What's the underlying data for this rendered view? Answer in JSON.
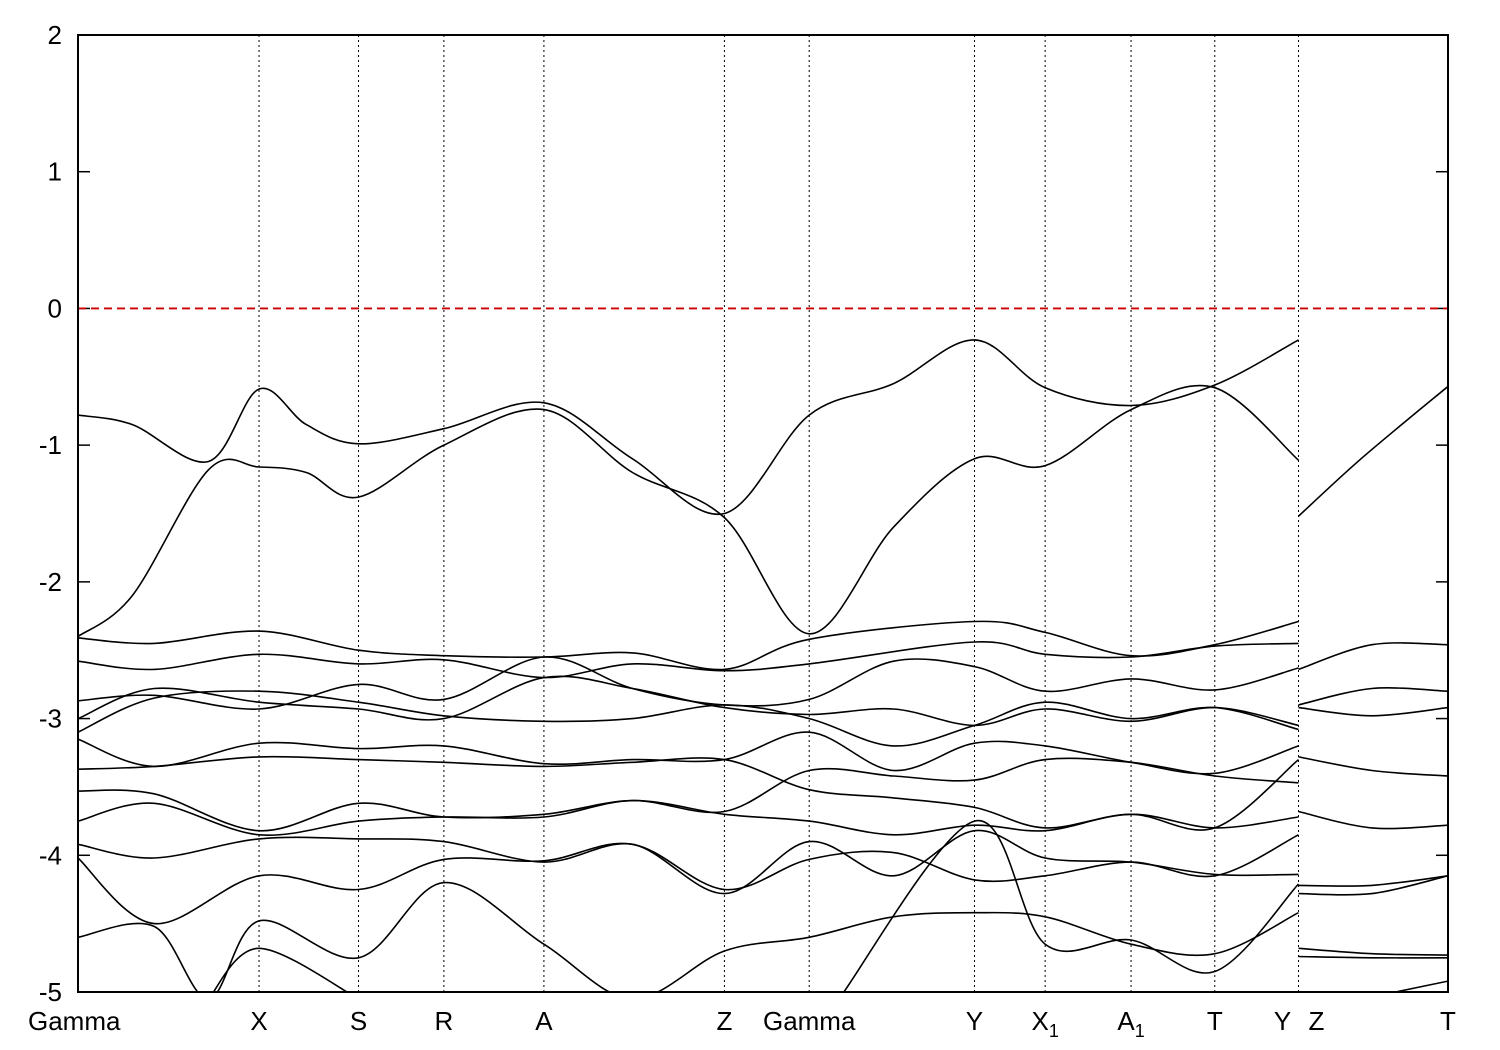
{
  "chart_data": {
    "type": "line",
    "title": "",
    "xlabel": "",
    "ylabel": "",
    "ylim": [
      -5,
      2
    ],
    "y_ticks": [
      "2",
      "1",
      "0",
      "-1",
      "-2",
      "-3",
      "-4",
      "-5"
    ],
    "y_tick_values": [
      2,
      1,
      0,
      -1,
      -2,
      -3,
      -4,
      -5
    ],
    "x_range": [
      0,
      12.6
    ],
    "kpoint_positions": [
      0,
      1.665,
      2.58,
      3.365,
      4.285,
      5.945,
      6.725,
      8.245,
      8.895,
      9.685,
      10.455,
      11.225,
      12.6
    ],
    "kpoint_labels": [
      {
        "text": "Gamma",
        "x": 0
      },
      {
        "text": "X",
        "x": 1.665
      },
      {
        "text": "S",
        "x": 2.58
      },
      {
        "text": "R",
        "x": 3.365
      },
      {
        "text": "A",
        "x": 4.285
      },
      {
        "text": "Z",
        "x": 5.945
      },
      {
        "text": "Gamma",
        "x": 6.725
      },
      {
        "text": "Y",
        "x": 8.245
      },
      {
        "text": "X",
        "sub": "1",
        "x": 8.895
      },
      {
        "text": "A",
        "sub": "1",
        "x": 9.685
      },
      {
        "text": "T",
        "x": 10.455
      },
      {
        "text": "Y",
        "x": 11.225
      },
      {
        "text": "Z",
        "x": 11.225
      },
      {
        "text": "T",
        "x": 12.6
      }
    ],
    "fermi_level": {
      "y": 0,
      "color": "#cc0000",
      "style": "dashed"
    },
    "grid": "vertical dotted lines at high-symmetry points",
    "series_color": "#000000",
    "series": [
      {
        "x": [
          0,
          0.5,
          1.2,
          1.665,
          2.1,
          2.58,
          3.365,
          4.285,
          5.1,
          5.945,
          6.725,
          7.5,
          8.245,
          8.895,
          9.685,
          10.455,
          11.225
        ],
        "values": [
          -0.78,
          -0.85,
          -1.12,
          -0.59,
          -0.85,
          -0.99,
          -0.88,
          -0.69,
          -1.1,
          -1.5,
          -0.78,
          -0.55,
          -0.23,
          -0.58,
          -0.71,
          -0.56,
          -0.23
        ]
      },
      {
        "x": [
          0,
          0.5,
          1.2,
          1.665,
          2.1,
          2.58,
          3.365,
          4.285,
          5.1,
          5.945,
          6.725,
          7.5,
          8.245,
          8.895,
          9.685,
          10.455,
          11.225
        ],
        "values": [
          -2.4,
          -2.1,
          -1.18,
          -1.16,
          -1.2,
          -1.38,
          -1.0,
          -0.74,
          -1.2,
          -1.53,
          -2.38,
          -1.6,
          -1.1,
          -1.15,
          -0.74,
          -0.58,
          -1.11
        ]
      },
      {
        "x": [
          11.225,
          11.8,
          12.6
        ],
        "values": [
          -1.52,
          -1.1,
          -0.57
        ]
      },
      {
        "x": [
          0,
          0.7,
          1.665,
          2.58,
          3.365,
          4.285,
          5.1,
          5.945,
          6.725,
          8.245,
          8.895,
          9.685,
          10.455,
          11.225
        ],
        "values": [
          -2.41,
          -2.45,
          -2.36,
          -2.5,
          -2.54,
          -2.55,
          -2.52,
          -2.64,
          -2.42,
          -2.29,
          -2.37,
          -2.54,
          -2.46,
          -2.29
        ]
      },
      {
        "x": [
          0,
          0.7,
          1.665,
          2.58,
          3.365,
          4.285,
          5.1,
          5.945,
          6.725,
          8.245,
          8.895,
          9.685,
          10.455,
          11.225
        ],
        "values": [
          -2.58,
          -2.64,
          -2.53,
          -2.6,
          -2.57,
          -2.7,
          -2.6,
          -2.65,
          -2.6,
          -2.44,
          -2.53,
          -2.55,
          -2.47,
          -2.45
        ]
      },
      {
        "x": [
          11.225,
          11.9,
          12.6
        ],
        "values": [
          -2.64,
          -2.46,
          -2.46
        ]
      },
      {
        "x": [
          0,
          0.7,
          1.665,
          2.58,
          3.365,
          4.285,
          5.1,
          5.945,
          6.725,
          7.5,
          8.245,
          8.895,
          9.685,
          10.455,
          11.225
        ],
        "values": [
          -2.87,
          -2.83,
          -2.93,
          -2.75,
          -2.86,
          -2.55,
          -2.78,
          -2.9,
          -2.86,
          -2.58,
          -2.62,
          -2.8,
          -2.71,
          -2.79,
          -2.63
        ]
      },
      {
        "x": [
          0,
          0.7,
          1.665,
          2.58,
          3.365,
          4.285,
          5.1,
          5.945,
          6.725,
          7.5,
          8.245,
          8.895,
          9.685,
          10.455,
          11.225
        ],
        "values": [
          -3.0,
          -2.78,
          -2.88,
          -2.93,
          -3.0,
          -2.7,
          -2.78,
          -2.92,
          -2.97,
          -2.93,
          -3.05,
          -2.93,
          -3.02,
          -2.92,
          -3.05
        ]
      },
      {
        "x": [
          11.225,
          11.9,
          12.6
        ],
        "values": [
          -2.9,
          -2.78,
          -2.8
        ]
      },
      {
        "x": [
          11.225,
          11.9,
          12.6
        ],
        "values": [
          -2.92,
          -2.98,
          -2.92
        ]
      },
      {
        "x": [
          0,
          0.7,
          1.665,
          2.58,
          3.365,
          4.285,
          5.1,
          5.945,
          6.725,
          7.5,
          8.245,
          8.895,
          9.685,
          10.455,
          11.225
        ],
        "values": [
          -3.1,
          -2.85,
          -2.8,
          -2.88,
          -2.98,
          -3.02,
          -3.0,
          -2.9,
          -3.0,
          -3.2,
          -3.05,
          -2.88,
          -3.0,
          -2.92,
          -3.08
        ]
      },
      {
        "x": [
          0,
          0.7,
          1.665,
          2.58,
          3.365,
          4.285,
          5.1,
          5.945,
          6.725,
          7.5,
          8.245,
          8.895,
          9.685,
          10.455,
          11.225
        ],
        "values": [
          -3.15,
          -3.35,
          -3.18,
          -3.22,
          -3.2,
          -3.33,
          -3.3,
          -3.3,
          -3.1,
          -3.38,
          -3.18,
          -3.2,
          -3.32,
          -3.4,
          -3.2
        ]
      },
      {
        "x": [
          0,
          0.7,
          1.665,
          2.58,
          3.365,
          4.285,
          5.1,
          5.945,
          6.725,
          7.5,
          8.245,
          8.895,
          9.685,
          10.455,
          11.225
        ],
        "values": [
          -3.37,
          -3.35,
          -3.28,
          -3.3,
          -3.32,
          -3.35,
          -3.32,
          -3.3,
          -3.52,
          -3.58,
          -3.65,
          -3.8,
          -3.7,
          -3.8,
          -3.3
        ]
      },
      {
        "x": [
          11.225,
          11.9,
          12.6
        ],
        "values": [
          -3.28,
          -3.38,
          -3.42
        ]
      },
      {
        "x": [
          0,
          0.7,
          1.665,
          2.58,
          3.365,
          4.285,
          5.1,
          5.945,
          6.725,
          7.5,
          8.245,
          8.895,
          9.685,
          10.455,
          11.225
        ],
        "values": [
          -3.53,
          -3.55,
          -3.82,
          -3.62,
          -3.72,
          -3.7,
          -3.6,
          -3.68,
          -3.38,
          -3.42,
          -3.45,
          -3.3,
          -3.32,
          -3.42,
          -3.47
        ]
      },
      {
        "x": [
          11.225,
          11.9,
          12.6
        ],
        "values": [
          -3.68,
          -3.8,
          -3.78
        ]
      },
      {
        "x": [
          0,
          0.7,
          1.665,
          2.58,
          3.365,
          4.285,
          5.1,
          5.945,
          6.725,
          7.5,
          8.245,
          8.895,
          9.685,
          10.455,
          11.225
        ],
        "values": [
          -3.75,
          -3.62,
          -3.85,
          -3.75,
          -3.72,
          -3.72,
          -3.6,
          -3.7,
          -3.75,
          -3.85,
          -3.78,
          -3.82,
          -3.7,
          -3.8,
          -3.72
        ]
      },
      {
        "x": [
          0,
          0.7,
          1.665,
          2.58,
          3.365,
          4.285,
          5.1,
          5.945,
          6.725,
          7.5,
          8.245,
          8.895,
          9.685,
          10.455,
          11.225
        ],
        "values": [
          -3.92,
          -4.02,
          -3.88,
          -3.88,
          -3.9,
          -4.05,
          -3.92,
          -4.25,
          -4.03,
          -3.98,
          -4.18,
          -4.15,
          -4.05,
          -4.15,
          -3.85
        ]
      },
      {
        "x": [
          11.225,
          11.9,
          12.6
        ],
        "values": [
          -4.22,
          -4.22,
          -4.15
        ]
      },
      {
        "x": [
          0,
          0.7,
          1.665,
          2.58,
          3.365,
          4.285,
          5.1,
          5.945,
          6.725,
          7.5,
          8.245,
          8.895,
          9.685,
          10.455,
          11.225
        ],
        "values": [
          -4.02,
          -4.5,
          -4.15,
          -4.25,
          -4.03,
          -4.04,
          -3.92,
          -4.28,
          -3.9,
          -4.15,
          -3.82,
          -4.02,
          -4.05,
          -4.14,
          -4.14
        ]
      },
      {
        "x": [
          11.225,
          11.9,
          12.6
        ],
        "values": [
          -4.28,
          -4.28,
          -4.15
        ]
      },
      {
        "x": [
          0,
          0.7,
          1.2,
          1.665,
          2.58,
          3.365,
          4.285,
          5.1,
          5.945,
          6.725,
          7.5,
          8.245,
          8.895,
          9.685,
          10.455,
          11.225
        ],
        "values": [
          -4.6,
          -4.52,
          -5.05,
          -4.48,
          -4.75,
          -4.2,
          -4.65,
          -5.05,
          -4.7,
          -4.6,
          -4.45,
          -4.42,
          -4.45,
          -4.65,
          -4.72,
          -4.42
        ]
      },
      {
        "x": [
          1.2,
          1.665,
          2.58
        ],
        "values": [
          -5.05,
          -4.68,
          -5.05
        ]
      },
      {
        "x": [
          7.0,
          8.245,
          8.895,
          9.685,
          10.455,
          11.225
        ],
        "values": [
          -5.05,
          -3.75,
          -4.65,
          -4.62,
          -4.85,
          -4.21
        ]
      },
      {
        "x": [
          11.225,
          11.9,
          12.6
        ],
        "values": [
          -4.68,
          -4.72,
          -4.73
        ]
      },
      {
        "x": [
          11.225,
          11.9,
          12.6
        ],
        "values": [
          -4.74,
          -4.75,
          -4.75
        ]
      },
      {
        "x": [
          12.0,
          12.6
        ],
        "values": [
          -5.02,
          -4.92
        ]
      }
    ]
  }
}
